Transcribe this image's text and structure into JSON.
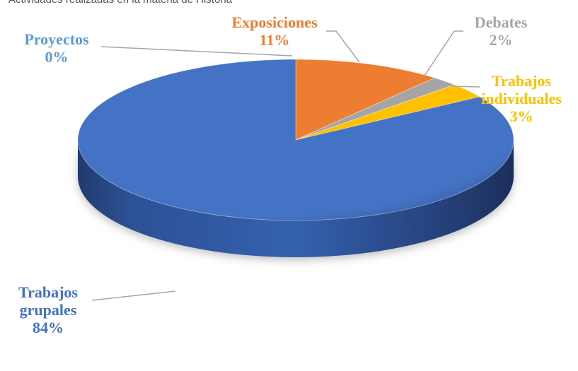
{
  "header": {
    "partial_text": "Actividades realizadas en la materia de Historia"
  },
  "chart_data": {
    "type": "pie",
    "title": "",
    "style": "3d",
    "categories": [
      "Trabajos grupales",
      "Exposiciones",
      "Debates",
      "Trabajos individuales",
      "Proyectos"
    ],
    "values": [
      84,
      11,
      2,
      3,
      0
    ],
    "unit": "%",
    "start_slice": "Exposiciones",
    "legend": "none",
    "data_labels": [
      {
        "category": "Proyectos",
        "lines": [
          "Proyectos"
        ],
        "value": "0%",
        "color": "#5b9bd5"
      },
      {
        "category": "Exposiciones",
        "lines": [
          "Exposiciones"
        ],
        "value": "11%",
        "color": "#ed7d31"
      },
      {
        "category": "Debates",
        "lines": [
          "Debates"
        ],
        "value": "2%",
        "color": "#a5a5a5"
      },
      {
        "category": "Trabajos individuales",
        "lines": [
          "Trabajos",
          "individuales"
        ],
        "value": "3%",
        "color": "#ffc000"
      },
      {
        "category": "Trabajos grupales",
        "lines": [
          "Trabajos",
          "grupales"
        ],
        "value": "84%",
        "color": "#4472c4"
      }
    ],
    "slice_colors": {
      "Trabajos grupales": "#4472c4",
      "Exposiciones": "#ed7d31",
      "Debates": "#a5a5a5",
      "Trabajos individuales": "#ffc000",
      "Proyectos": "#5b9bd5"
    },
    "leader_line_color": "#a6a6a6"
  }
}
